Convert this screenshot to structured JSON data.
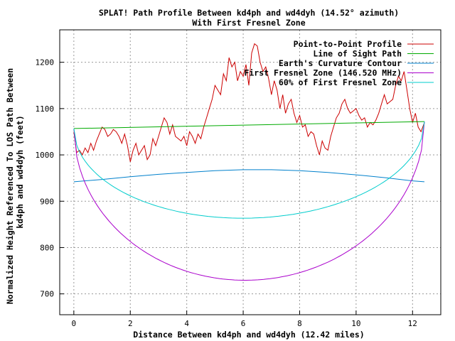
{
  "chart_data": {
    "type": "line",
    "title": "SPLAT! Path Profile Between kd4ph and wd4dyh (14.52° azimuth)",
    "subtitle": "With First Fresnel Zone",
    "xlabel": "Distance Between kd4ph and wd4dyh (12.42 miles)",
    "ylabel_line1": "Normalized Height Referenced To LOS Path Between",
    "ylabel_line2": "kd4ph and wd4dyh (feet)",
    "xlim": [
      -0.5,
      13
    ],
    "ylim": [
      655,
      1270
    ],
    "x_ticks": [
      0,
      2,
      4,
      6,
      8,
      10,
      12
    ],
    "y_ticks": [
      700,
      800,
      900,
      1000,
      1100,
      1200
    ],
    "grid": true,
    "legend_position": "top-right",
    "series": [
      {
        "name": "Point-to-Point Profile",
        "color": "#cc0000",
        "x": [
          0,
          0.1,
          0.2,
          0.3,
          0.4,
          0.5,
          0.6,
          0.7,
          0.8,
          0.9,
          1.0,
          1.1,
          1.2,
          1.3,
          1.4,
          1.5,
          1.6,
          1.7,
          1.8,
          1.9,
          2.0,
          2.1,
          2.2,
          2.3,
          2.4,
          2.5,
          2.6,
          2.7,
          2.8,
          2.9,
          3.0,
          3.1,
          3.2,
          3.3,
          3.4,
          3.5,
          3.6,
          3.7,
          3.8,
          3.9,
          4.0,
          4.1,
          4.2,
          4.3,
          4.4,
          4.5,
          4.6,
          4.7,
          4.8,
          4.9,
          5.0,
          5.1,
          5.2,
          5.3,
          5.4,
          5.5,
          5.6,
          5.7,
          5.8,
          5.9,
          6.0,
          6.1,
          6.2,
          6.3,
          6.4,
          6.5,
          6.6,
          6.7,
          6.8,
          6.9,
          7.0,
          7.1,
          7.2,
          7.3,
          7.4,
          7.5,
          7.6,
          7.7,
          7.8,
          7.9,
          8.0,
          8.1,
          8.2,
          8.3,
          8.4,
          8.5,
          8.6,
          8.7,
          8.8,
          8.9,
          9.0,
          9.1,
          9.2,
          9.3,
          9.4,
          9.5,
          9.6,
          9.7,
          9.8,
          9.9,
          10.0,
          10.1,
          10.2,
          10.3,
          10.4,
          10.5,
          10.6,
          10.7,
          10.8,
          10.9,
          11.0,
          11.1,
          11.2,
          11.3,
          11.4,
          11.5,
          11.6,
          11.7,
          11.8,
          11.9,
          12.0,
          12.1,
          12.2,
          12.3,
          12.42
        ],
        "values": [
          1050,
          1005,
          1010,
          1000,
          1015,
          1005,
          1025,
          1010,
          1030,
          1045,
          1060,
          1055,
          1040,
          1045,
          1055,
          1050,
          1040,
          1025,
          1045,
          1020,
          985,
          1010,
          1025,
          1000,
          1010,
          1020,
          990,
          1000,
          1035,
          1020,
          1040,
          1060,
          1080,
          1070,
          1045,
          1065,
          1040,
          1035,
          1030,
          1040,
          1020,
          1050,
          1040,
          1025,
          1045,
          1035,
          1060,
          1080,
          1100,
          1120,
          1150,
          1140,
          1130,
          1175,
          1160,
          1210,
          1190,
          1200,
          1160,
          1180,
          1170,
          1195,
          1150,
          1220,
          1240,
          1235,
          1200,
          1180,
          1190,
          1165,
          1130,
          1160,
          1140,
          1100,
          1130,
          1090,
          1110,
          1120,
          1090,
          1070,
          1085,
          1060,
          1065,
          1040,
          1050,
          1045,
          1020,
          1000,
          1030,
          1015,
          1010,
          1040,
          1060,
          1080,
          1090,
          1110,
          1120,
          1100,
          1090,
          1095,
          1100,
          1085,
          1075,
          1080,
          1060,
          1070,
          1065,
          1075,
          1090,
          1110,
          1130,
          1110,
          1115,
          1120,
          1150,
          1170,
          1160,
          1180,
          1140,
          1100,
          1070,
          1090,
          1060,
          1050,
          1070
        ]
      },
      {
        "name": "Line of Sight Path",
        "color": "#00aa00",
        "x": [
          0,
          12.42
        ],
        "values": [
          1057,
          1072
        ]
      },
      {
        "name": "Earth's Curvature Contour",
        "color": "#0080cc",
        "x": [
          0,
          1,
          2,
          3,
          4,
          5,
          6,
          7,
          8,
          9,
          10,
          11,
          12,
          12.42
        ],
        "values": [
          942,
          947,
          953,
          958,
          962,
          966,
          968,
          968,
          966,
          962,
          957,
          951,
          944,
          942
        ]
      },
      {
        "name": "First Fresnel Zone (146.520 MHz)",
        "color": "#aa00cc",
        "curve": "fresnel",
        "clearance_at_mid": 335
      },
      {
        "name": "60% of First Fresnel Zone",
        "color": "#00cccc",
        "curve": "fresnel",
        "clearance_at_mid": 201
      }
    ]
  }
}
